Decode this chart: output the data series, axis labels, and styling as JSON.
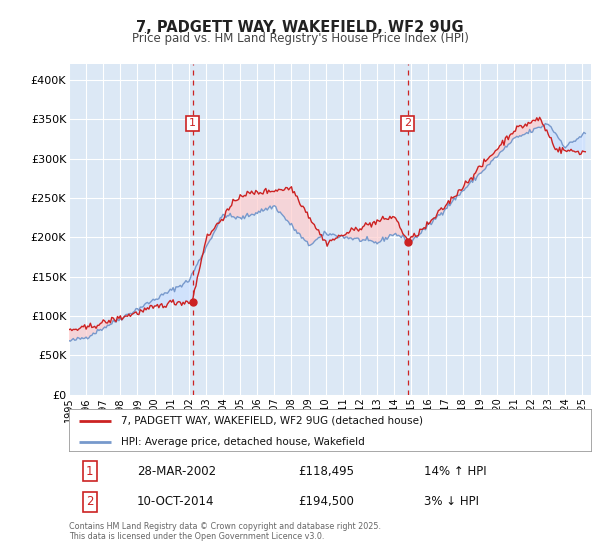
{
  "title": "7, PADGETT WAY, WAKEFIELD, WF2 9UG",
  "subtitle": "Price paid vs. HM Land Registry's House Price Index (HPI)",
  "background_color": "#ffffff",
  "plot_bg_color": "#dce8f5",
  "grid_color": "#ffffff",
  "ylim": [
    0,
    420000
  ],
  "yticks": [
    0,
    50000,
    100000,
    150000,
    200000,
    250000,
    300000,
    350000,
    400000
  ],
  "ytick_labels": [
    "£0",
    "£50K",
    "£100K",
    "£150K",
    "£200K",
    "£250K",
    "£300K",
    "£350K",
    "£400K"
  ],
  "xlim_start": 1995.0,
  "xlim_end": 2025.5,
  "xticks": [
    1995,
    1996,
    1997,
    1998,
    1999,
    2000,
    2001,
    2002,
    2003,
    2004,
    2005,
    2006,
    2007,
    2008,
    2009,
    2010,
    2011,
    2012,
    2013,
    2014,
    2015,
    2016,
    2017,
    2018,
    2019,
    2020,
    2021,
    2022,
    2023,
    2024,
    2025
  ],
  "sale1_x": 2002.22,
  "sale1_y": 118495,
  "sale2_x": 2014.78,
  "sale2_y": 194500,
  "red_line_color": "#cc2222",
  "blue_line_color": "#7799cc",
  "red_fill_color": "#ffcccc",
  "blue_fill_color": "#cce0ff",
  "marker_color": "#cc2222",
  "vline_color": "#cc2222",
  "legend_label_red": "7, PADGETT WAY, WAKEFIELD, WF2 9UG (detached house)",
  "legend_label_blue": "HPI: Average price, detached house, Wakefield",
  "table_row1": [
    "1",
    "28-MAR-2002",
    "£118,495",
    "14% ↑ HPI"
  ],
  "table_row2": [
    "2",
    "10-OCT-2014",
    "£194,500",
    "3% ↓ HPI"
  ],
  "footer": "Contains HM Land Registry data © Crown copyright and database right 2025.\nThis data is licensed under the Open Government Licence v3.0."
}
